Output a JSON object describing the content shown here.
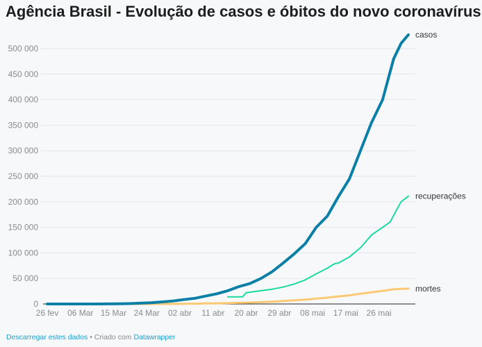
{
  "title": "Agência Brasil - Evolução de casos e óbitos do novo coronavírus",
  "footer": {
    "download_label": "Descarregar estes dados",
    "separator": " • Criado com ",
    "tool_label": "Datawrapper"
  },
  "chart_data": {
    "type": "line",
    "title": "Agência Brasil - Evolução de casos e óbitos do novo coronavírus",
    "xlabel": "",
    "ylabel": "",
    "ylim": [
      0,
      525000
    ],
    "grid": true,
    "legend": "direct labels at line ends (right)",
    "y_ticks": [
      0,
      50000,
      100000,
      150000,
      200000,
      250000,
      300000,
      350000,
      400000,
      450000,
      500000
    ],
    "y_tick_labels": [
      "0",
      "50 000",
      "100 000",
      "150 000",
      "200 000",
      "250 000",
      "300 000",
      "350 000",
      "400 000",
      "450 000",
      "500 000"
    ],
    "x_tick_labels": [
      "26 fev",
      "06 Mar",
      "15 Mar",
      "24 Mar",
      "02 abr",
      "11 abr",
      "20 abr",
      "29 abr",
      "08 mai",
      "17 mai",
      "26 mai"
    ],
    "x_ticks": [
      "2020-02-26",
      "2020-03-06",
      "2020-03-15",
      "2020-03-24",
      "2020-04-02",
      "2020-04-11",
      "2020-04-20",
      "2020-04-29",
      "2020-05-08",
      "2020-05-17",
      "2020-05-26"
    ],
    "xlim": [
      "2020-02-26",
      "2020-06-03"
    ],
    "series": [
      {
        "name": "casos",
        "color": "#0b7fa6",
        "points": [
          [
            "2020-02-26",
            1
          ],
          [
            "2020-03-01",
            2
          ],
          [
            "2020-03-04",
            4
          ],
          [
            "2020-03-07",
            19
          ],
          [
            "2020-03-10",
            34
          ],
          [
            "2020-03-13",
            98
          ],
          [
            "2020-03-16",
            234
          ],
          [
            "2020-03-19",
            621
          ],
          [
            "2020-03-22",
            1546
          ],
          [
            "2020-03-25",
            2433
          ],
          [
            "2020-03-28",
            3904
          ],
          [
            "2020-03-31",
            5717
          ],
          [
            "2020-04-03",
            8500
          ],
          [
            "2020-04-06",
            11000
          ],
          [
            "2020-04-09",
            15500
          ],
          [
            "2020-04-12",
            20000
          ],
          [
            "2020-04-15",
            26000
          ],
          [
            "2020-04-18",
            34000
          ],
          [
            "2020-04-21",
            40000
          ],
          [
            "2020-04-24",
            50000
          ],
          [
            "2020-04-27",
            63000
          ],
          [
            "2020-04-30",
            80000
          ],
          [
            "2020-05-03",
            98000
          ],
          [
            "2020-05-06",
            118000
          ],
          [
            "2020-05-09",
            150000
          ],
          [
            "2020-05-12",
            172000
          ],
          [
            "2020-05-15",
            210000
          ],
          [
            "2020-05-18",
            245000
          ],
          [
            "2020-05-21",
            300000
          ],
          [
            "2020-05-24",
            355000
          ],
          [
            "2020-05-27",
            400000
          ],
          [
            "2020-05-30",
            480000
          ],
          [
            "2020-06-01",
            510000
          ],
          [
            "2020-06-03",
            527000
          ]
        ]
      },
      {
        "name": "recuperações",
        "color": "#1ad9a0",
        "points": [
          [
            "2020-04-15",
            14000
          ],
          [
            "2020-04-19",
            14000
          ],
          [
            "2020-04-20",
            22000
          ],
          [
            "2020-04-24",
            26000
          ],
          [
            "2020-04-27",
            29000
          ],
          [
            "2020-04-30",
            33000
          ],
          [
            "2020-05-03",
            39000
          ],
          [
            "2020-05-06",
            47000
          ],
          [
            "2020-05-09",
            59000
          ],
          [
            "2020-05-12",
            70000
          ],
          [
            "2020-05-14",
            79000
          ],
          [
            "2020-05-15",
            80000
          ],
          [
            "2020-05-18",
            92000
          ],
          [
            "2020-05-21",
            110000
          ],
          [
            "2020-05-24",
            135000
          ],
          [
            "2020-05-27",
            150000
          ],
          [
            "2020-05-29",
            160000
          ],
          [
            "2020-06-01",
            200000
          ],
          [
            "2020-06-03",
            211000
          ]
        ]
      },
      {
        "name": "mortes",
        "color": "#fcc874",
        "points": [
          [
            "2020-02-26",
            0
          ],
          [
            "2020-03-17",
            1
          ],
          [
            "2020-03-22",
            25
          ],
          [
            "2020-03-25",
            57
          ],
          [
            "2020-03-28",
            111
          ],
          [
            "2020-03-31",
            201
          ],
          [
            "2020-04-03",
            359
          ],
          [
            "2020-04-06",
            553
          ],
          [
            "2020-04-09",
            950
          ],
          [
            "2020-04-12",
            1223
          ],
          [
            "2020-04-15",
            1736
          ],
          [
            "2020-04-18",
            2347
          ],
          [
            "2020-04-21",
            2741
          ],
          [
            "2020-04-24",
            3670
          ],
          [
            "2020-04-27",
            4543
          ],
          [
            "2020-04-30",
            5901
          ],
          [
            "2020-05-03",
            7025
          ],
          [
            "2020-05-06",
            8536
          ],
          [
            "2020-05-09",
            10627
          ],
          [
            "2020-05-12",
            12400
          ],
          [
            "2020-05-15",
            14817
          ],
          [
            "2020-05-18",
            16792
          ],
          [
            "2020-05-21",
            20047
          ],
          [
            "2020-05-24",
            22666
          ],
          [
            "2020-05-27",
            25598
          ],
          [
            "2020-05-30",
            28834
          ],
          [
            "2020-06-03",
            30000
          ]
        ]
      }
    ]
  }
}
